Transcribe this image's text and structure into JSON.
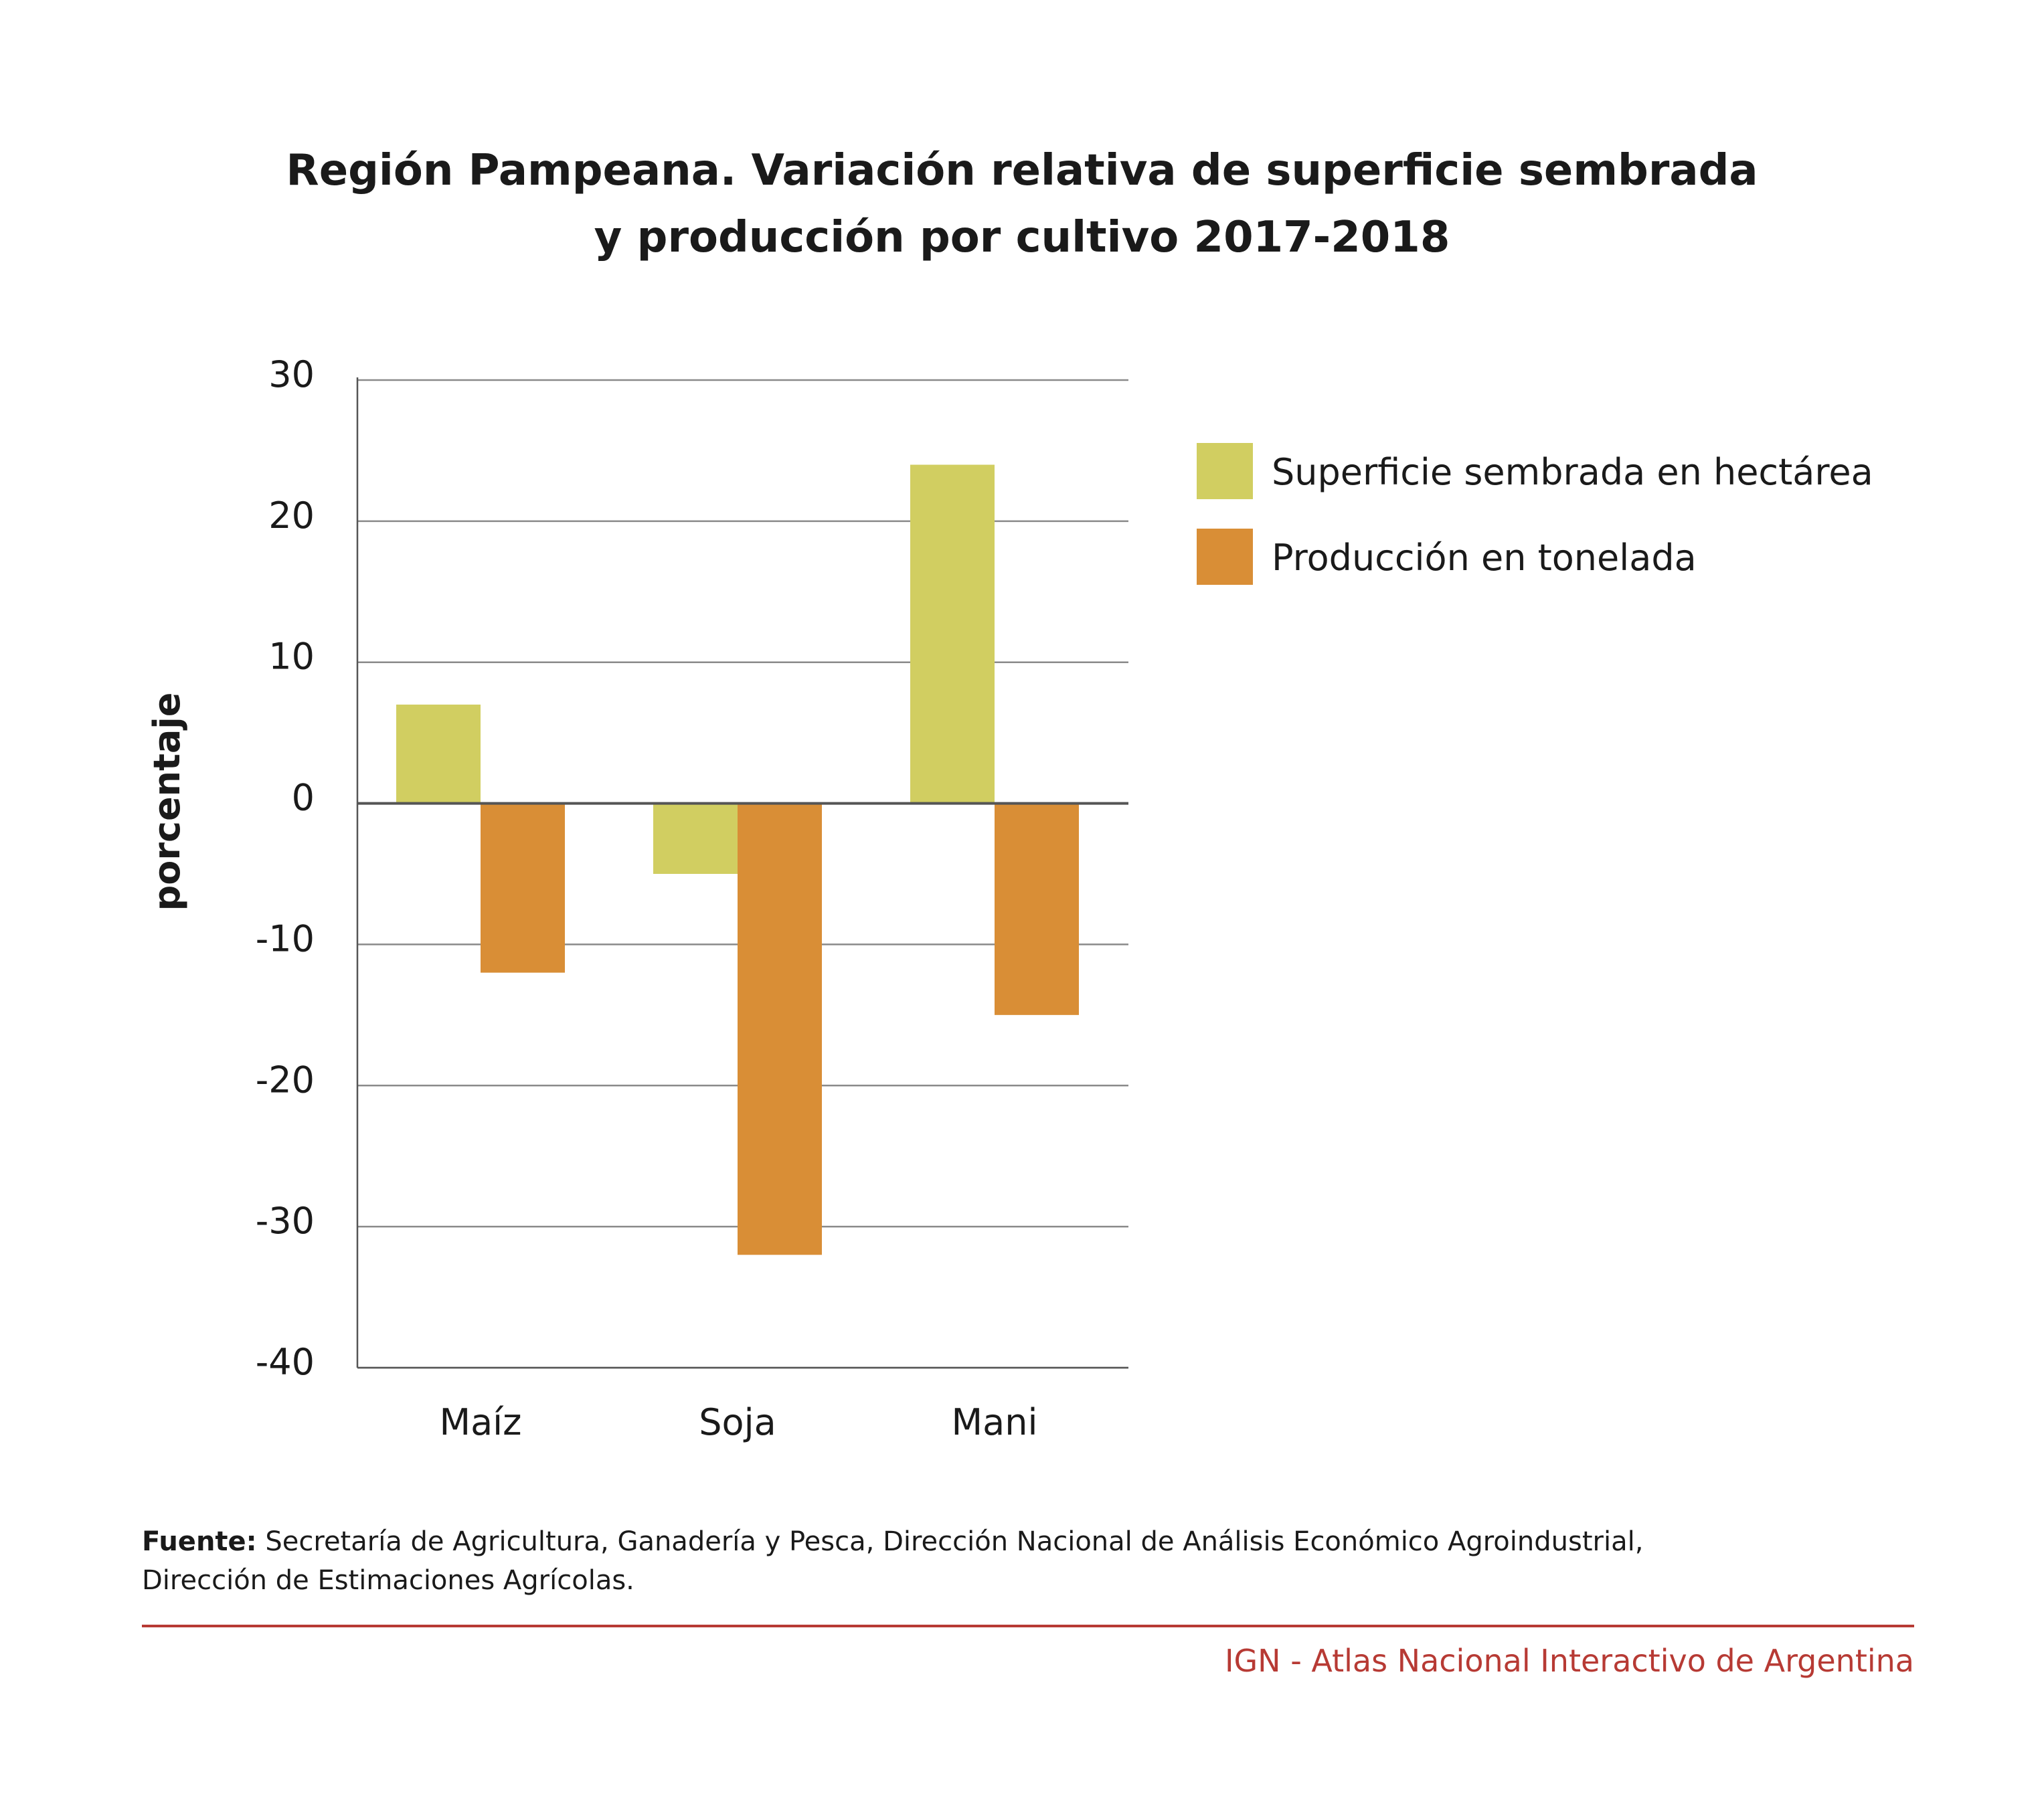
{
  "chart_data": {
    "type": "bar",
    "title": [
      "Región Pampeana. Variación relativa de superficie sembrada",
      "y producción por cultivo 2017-2018"
    ],
    "xlabel": "",
    "ylabel": "porcentaje",
    "categories": [
      "Maíz",
      "Soja",
      "Mani"
    ],
    "series": [
      {
        "name": "Superficie sembrada en hectárea",
        "color": "#d1ce61",
        "values": [
          7,
          -5,
          24
        ]
      },
      {
        "name": "Producción en tonelada",
        "color": "#d98e36",
        "values": [
          -12,
          -32,
          -15
        ]
      }
    ],
    "ylim": [
      -40,
      30
    ],
    "yticks": [
      30,
      20,
      10,
      0,
      -10,
      -20,
      -30,
      -40
    ],
    "ytick_labels": [
      "30",
      "20",
      "10",
      "0",
      "-10",
      "-20",
      "-30",
      "-40"
    ],
    "grid": true,
    "legend": "top-right"
  },
  "footer": {
    "source_label": "Fuente:",
    "source_text": " Secretaría de Agricultura, Ganadería y Pesca, Dirección Nacional de Análisis Económico Agroindustrial,",
    "source_text_line2": "Dirección de Estimaciones Agrícolas.",
    "credit": "IGN - Atlas Nacional Interactivo de Argentina",
    "credit_color": "#b73a34"
  }
}
